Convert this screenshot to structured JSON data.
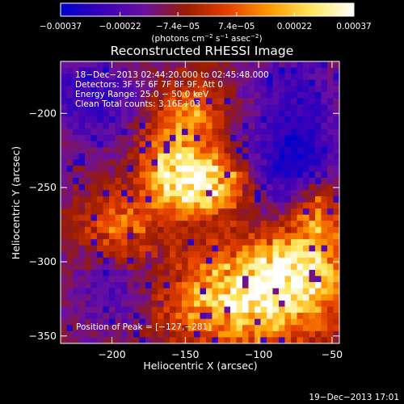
{
  "chart_data": {
    "type": "heatmap",
    "title": "Reconstructed RHESSI Image",
    "xlabel": "Heliocentric X (arcsec)",
    "ylabel": "Heliocentric Y (arcsec)",
    "xlim": [
      -235,
      -45
    ],
    "ylim": [
      -355,
      -165
    ],
    "xticks": [
      -200,
      -150,
      -100,
      -50
    ],
    "yticks": [
      -200,
      -250,
      -300,
      -350
    ],
    "xtick_labels": [
      "−200",
      "−150",
      "−100",
      "−50"
    ],
    "ytick_labels": [
      "−200",
      "−250",
      "−300",
      "−350"
    ],
    "colorbar": {
      "min": -0.00037,
      "max": 0.00037,
      "tick_values": [
        -0.00037,
        -0.00022,
        -7.4e-05,
        7.4e-05,
        0.00022,
        0.00037
      ],
      "tick_labels": [
        "−0.00037",
        "−0.00022",
        "−7.4e−05",
        "7.4e−05",
        "0.00022",
        "0.00037"
      ],
      "colors": [
        "#0000cc",
        "#3a00b8",
        "#6a10a0",
        "#9a1c00",
        "#e64000",
        "#ff9a00",
        "#ffe860",
        "#ffffff"
      ],
      "units_main": "(photons cm",
      "units_exp1": "−2",
      "units_mid": " s",
      "units_exp2": "−1",
      "units_end": " asec",
      "units_exp3": "−2",
      "units_close": ")"
    },
    "info_lines": [
      "18−Dec−2013 02:44:20.000 to 02:45:48.000",
      "Detectors: 3F 5F 6F 7F 8F 9F, Att 0",
      "Energy Range: 25.0 − 50.0 keV",
      "Clean      Total counts: 3.16E+03"
    ],
    "peak_label": "Position of Peak = [−127,−281]",
    "peak": [
      -127,
      -281
    ],
    "hot_regions": [
      {
        "x": -135,
        "y": -248,
        "peak": 1.0,
        "sx": 18,
        "sy": 14
      },
      {
        "x": -160,
        "y": -235,
        "peak": 0.8,
        "sx": 14,
        "sy": 20
      },
      {
        "x": -110,
        "y": -325,
        "peak": 0.9,
        "sx": 40,
        "sy": 22
      },
      {
        "x": -75,
        "y": -305,
        "peak": 0.8,
        "sx": 22,
        "sy": 18
      },
      {
        "x": -195,
        "y": -280,
        "peak": 0.55,
        "sx": 18,
        "sy": 18
      },
      {
        "x": -145,
        "y": -200,
        "peak": 0.5,
        "sx": 15,
        "sy": 15
      },
      {
        "x": -60,
        "y": -265,
        "peak": 0.6,
        "sx": 12,
        "sy": 18
      }
    ],
    "cold_regions": [
      {
        "x": -215,
        "y": -190,
        "depth": 0.4
      },
      {
        "x": -75,
        "y": -235,
        "depth": 0.55
      },
      {
        "x": -195,
        "y": -315,
        "depth": 0.35
      },
      {
        "x": -75,
        "y": -185,
        "depth": 0.3
      }
    ]
  },
  "footer_timestamp": "19−Dec−2013 17:01"
}
